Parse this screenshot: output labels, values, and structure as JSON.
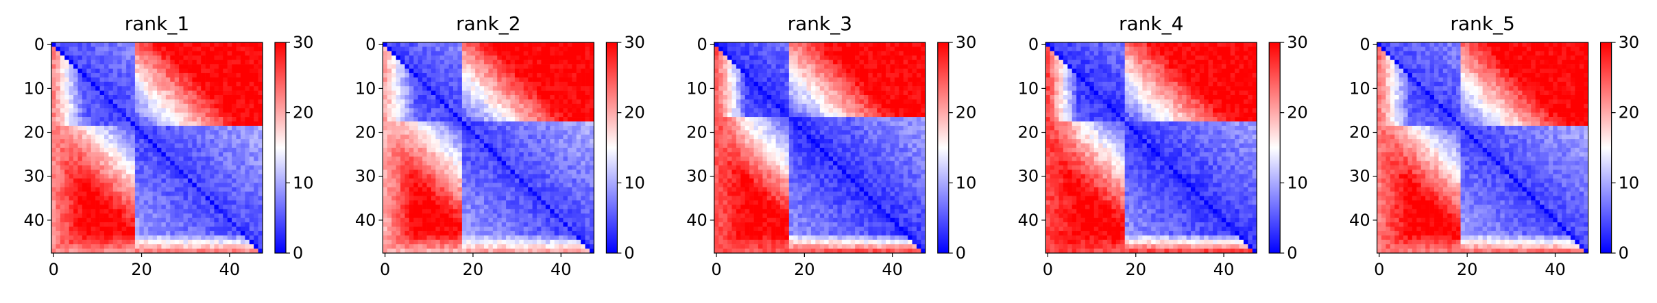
{
  "chart_data": [
    {
      "type": "heatmap",
      "title": "rank_1",
      "rows": 48,
      "cols": 48,
      "xlim": [
        0,
        47
      ],
      "ylim": [
        47,
        0
      ],
      "xticks": [
        "0",
        "20",
        "40"
      ],
      "yticks": [
        "0",
        "10",
        "20",
        "30",
        "40"
      ],
      "colorbar": {
        "min": 0,
        "max": 30,
        "ticks": [
          "0",
          "10",
          "20",
          "30"
        ],
        "colormap": "bwr"
      },
      "pattern": {
        "near_diagonal_value": 4,
        "near_cross_block_value": 30,
        "block_boundary_index": 19,
        "edge_band_value": 22
      }
    },
    {
      "type": "heatmap",
      "title": "rank_2",
      "rows": 48,
      "cols": 48,
      "xlim": [
        0,
        47
      ],
      "ylim": [
        47,
        0
      ],
      "xticks": [
        "0",
        "20",
        "40"
      ],
      "yticks": [
        "0",
        "10",
        "20",
        "30",
        "40"
      ],
      "colorbar": {
        "min": 0,
        "max": 30,
        "ticks": [
          "0",
          "10",
          "20",
          "30"
        ],
        "colormap": "bwr"
      },
      "pattern": {
        "near_diagonal_value": 4,
        "near_cross_block_value": 30,
        "block_boundary_index": 18,
        "edge_band_value": 20
      }
    },
    {
      "type": "heatmap",
      "title": "rank_3",
      "rows": 48,
      "cols": 48,
      "xlim": [
        0,
        47
      ],
      "ylim": [
        47,
        0
      ],
      "xticks": [
        "0",
        "20",
        "40"
      ],
      "yticks": [
        "0",
        "10",
        "20",
        "30",
        "40"
      ],
      "colorbar": {
        "min": 0,
        "max": 30,
        "ticks": [
          "0",
          "10",
          "20",
          "30"
        ],
        "colormap": "bwr"
      },
      "pattern": {
        "near_diagonal_value": 3,
        "near_cross_block_value": 30,
        "block_boundary_index": 17,
        "edge_band_value": 25
      }
    },
    {
      "type": "heatmap",
      "title": "rank_4",
      "rows": 48,
      "cols": 48,
      "xlim": [
        0,
        47
      ],
      "ylim": [
        47,
        0
      ],
      "xticks": [
        "0",
        "20",
        "40"
      ],
      "yticks": [
        "0",
        "10",
        "20",
        "30",
        "40"
      ],
      "colorbar": {
        "min": 0,
        "max": 30,
        "ticks": [
          "0",
          "10",
          "20",
          "30"
        ],
        "colormap": "bwr"
      },
      "pattern": {
        "near_diagonal_value": 3,
        "near_cross_block_value": 30,
        "block_boundary_index": 18,
        "edge_band_value": 26
      }
    },
    {
      "type": "heatmap",
      "title": "rank_5",
      "rows": 48,
      "cols": 48,
      "xlim": [
        0,
        47
      ],
      "ylim": [
        47,
        0
      ],
      "xticks": [
        "0",
        "20",
        "40"
      ],
      "yticks": [
        "0",
        "10",
        "20",
        "30",
        "40"
      ],
      "colorbar": {
        "min": 0,
        "max": 30,
        "ticks": [
          "0",
          "10",
          "20",
          "30"
        ],
        "colormap": "bwr"
      },
      "pattern": {
        "near_diagonal_value": 4,
        "near_cross_block_value": 30,
        "block_boundary_index": 19,
        "edge_band_value": 23
      }
    }
  ],
  "colors": {
    "low": "#0000ff",
    "mid": "#ffffff",
    "high": "#ff0000"
  }
}
